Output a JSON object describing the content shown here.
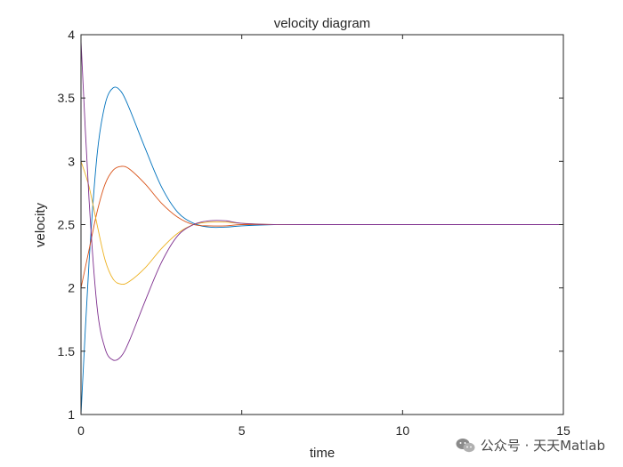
{
  "chart_data": {
    "type": "line",
    "title": "velocity diagram",
    "xlabel": "time",
    "ylabel": "velocity",
    "xlim": [
      0,
      15
    ],
    "ylim": [
      1,
      4
    ],
    "xticks": [
      0,
      5,
      10,
      15
    ],
    "yticks": [
      1,
      1.5,
      2,
      2.5,
      3,
      3.5,
      4
    ],
    "xtick_labels": [
      "0",
      "5",
      "10",
      "15"
    ],
    "ytick_labels": [
      "1",
      "1.5",
      "2",
      "2.5",
      "3",
      "3.5",
      "4"
    ],
    "grid": false,
    "legend": "none",
    "series": [
      {
        "color": "#0072BD",
        "x": [
          0,
          0.25,
          0.5,
          0.75,
          1.0,
          1.25,
          1.5,
          2.0,
          2.5,
          3.0,
          3.5,
          4.0,
          4.5,
          5.0,
          6.0,
          7.0,
          15.0
        ],
        "y": [
          1.0,
          2.2,
          3.05,
          3.45,
          3.58,
          3.55,
          3.42,
          3.1,
          2.8,
          2.6,
          2.51,
          2.48,
          2.48,
          2.49,
          2.5,
          2.5,
          2.5
        ]
      },
      {
        "color": "#D95319",
        "x": [
          0,
          0.25,
          0.5,
          0.75,
          1.0,
          1.25,
          1.5,
          2.0,
          2.5,
          3.0,
          3.5,
          4.0,
          4.5,
          5.0,
          6.0,
          7.0,
          15.0
        ],
        "y": [
          2.0,
          2.3,
          2.6,
          2.82,
          2.93,
          2.96,
          2.94,
          2.82,
          2.67,
          2.56,
          2.5,
          2.49,
          2.49,
          2.5,
          2.5,
          2.5,
          2.5
        ]
      },
      {
        "color": "#EDB120",
        "x": [
          0,
          0.25,
          0.5,
          0.75,
          1.0,
          1.25,
          1.5,
          2.0,
          2.5,
          3.0,
          3.5,
          4.0,
          4.5,
          5.0,
          6.0,
          7.0,
          15.0
        ],
        "y": [
          3.0,
          2.8,
          2.5,
          2.22,
          2.07,
          2.03,
          2.05,
          2.16,
          2.31,
          2.43,
          2.5,
          2.52,
          2.52,
          2.51,
          2.5,
          2.5,
          2.5
        ]
      },
      {
        "color": "#7E2F8E",
        "x": [
          0,
          0.25,
          0.5,
          0.75,
          1.0,
          1.25,
          1.5,
          2.0,
          2.5,
          3.0,
          3.5,
          4.0,
          4.5,
          5.0,
          6.0,
          7.0,
          15.0
        ],
        "y": [
          3.95,
          2.7,
          1.85,
          1.52,
          1.43,
          1.46,
          1.58,
          1.9,
          2.2,
          2.41,
          2.5,
          2.53,
          2.53,
          2.51,
          2.5,
          2.5,
          2.5
        ]
      }
    ]
  },
  "watermark": {
    "text": "公众号 · 天天Matlab",
    "icon": "wechat-icon"
  }
}
